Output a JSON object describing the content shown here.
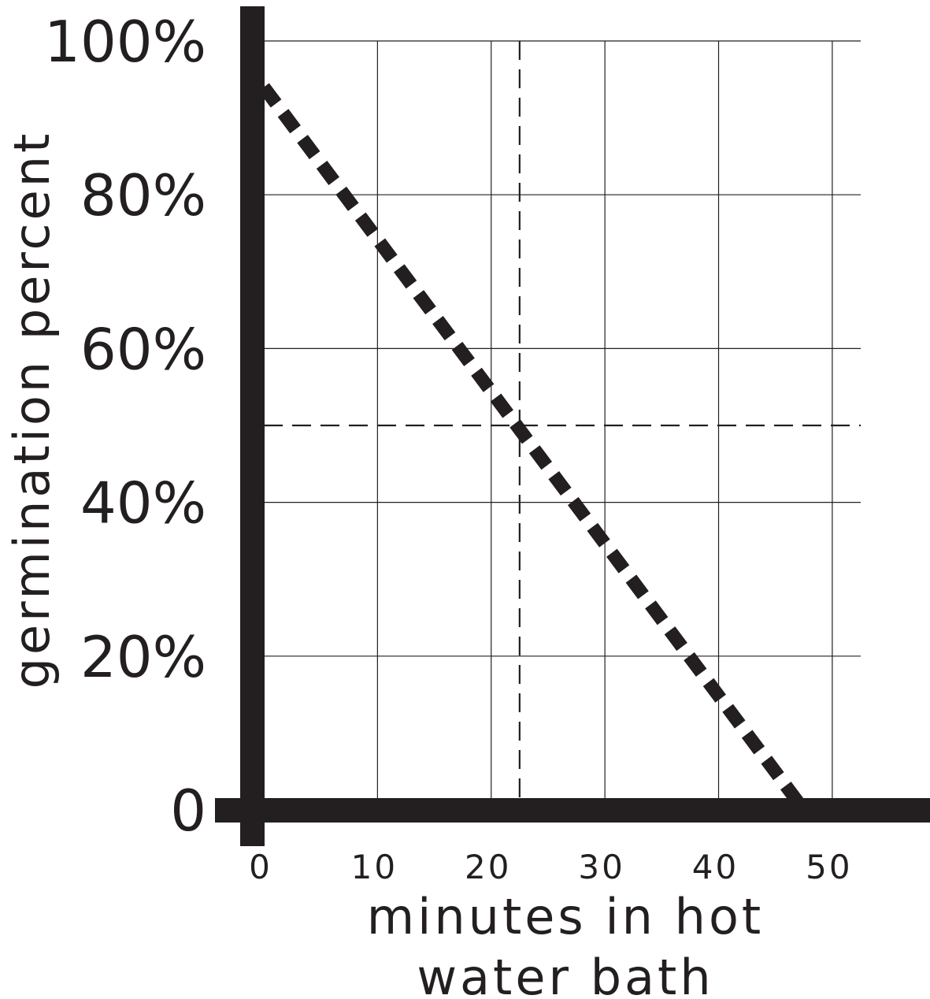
{
  "chart_data": {
    "type": "line",
    "title": "",
    "xlabel_lines": [
      "minutes in hot",
      "water bath"
    ],
    "ylabel": "germination percent",
    "x_ticks": [
      0,
      10,
      20,
      30,
      40,
      50
    ],
    "x_tick_labels": [
      "0",
      "10",
      "20",
      "30",
      "40",
      "50"
    ],
    "y_ticks": [
      0,
      20,
      40,
      60,
      80,
      100
    ],
    "y_tick_labels": [
      "0",
      "20%",
      "40%",
      "60%",
      "80%",
      "100%"
    ],
    "xlim": [
      0,
      52.5
    ],
    "ylim": [
      0,
      100
    ],
    "grid": true,
    "series": [
      {
        "x": [
          0,
          47.5
        ],
        "y": [
          94,
          0
        ],
        "style": "dashed"
      }
    ],
    "reference_lines": [
      {
        "orientation": "vertical",
        "x": 22.5,
        "style": "dashed"
      },
      {
        "orientation": "horizontal",
        "y": 50,
        "style": "dashed"
      }
    ],
    "colors": {
      "ink": "#231f20",
      "grid": "#231f20",
      "background": "#ffffff"
    }
  }
}
